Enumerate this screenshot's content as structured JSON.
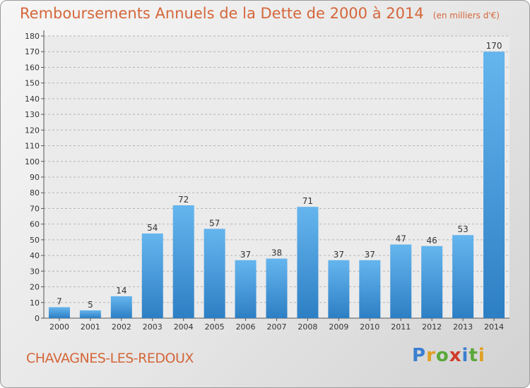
{
  "title": "Remboursements Annuels de la Dette de 2000 à 2014",
  "subtitle": "(en milliers d'€)",
  "city": "CHAVAGNES-LES-REDOUX",
  "logo": {
    "text": "Proxiti",
    "colors": [
      "#3a7fd0",
      "#e0a020",
      "#5aa83a",
      "#d03a2a",
      "#3a7fd0",
      "#5aa83a",
      "#e0a020"
    ]
  },
  "colors": {
    "bar_top": "#65b5ee",
    "bar_bottom": "#2d7fc4",
    "text_accent": "#d4663a"
  },
  "chart_data": {
    "type": "bar",
    "categories": [
      "2000",
      "2001",
      "2002",
      "2003",
      "2004",
      "2005",
      "2006",
      "2007",
      "2008",
      "2009",
      "2010",
      "2011",
      "2012",
      "2013",
      "2014"
    ],
    "values": [
      7,
      5,
      14,
      54,
      72,
      57,
      37,
      38,
      71,
      37,
      37,
      47,
      46,
      53,
      170
    ],
    "data_labels": [
      "7",
      "5",
      "14",
      "54",
      "72",
      "57",
      "37",
      "38",
      "71",
      "37",
      "37",
      "47",
      "46",
      "53",
      "170"
    ],
    "yticks": [
      0,
      10,
      20,
      30,
      40,
      50,
      60,
      70,
      80,
      90,
      100,
      110,
      120,
      130,
      140,
      150,
      160,
      170,
      180
    ],
    "ylim": [
      0,
      180
    ],
    "grid": true
  }
}
